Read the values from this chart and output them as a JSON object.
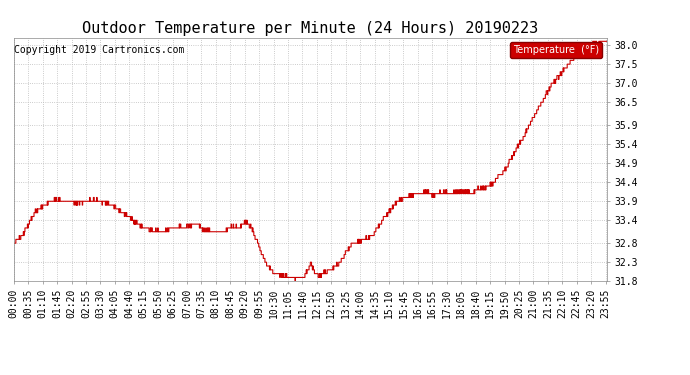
{
  "title": "Outdoor Temperature per Minute (24 Hours) 20190223",
  "copyright_text": "Copyright 2019 Cartronics.com",
  "legend_label": "Temperature  (°F)",
  "background_color": "#ffffff",
  "plot_bg_color": "#ffffff",
  "grid_color": "#bbbbbb",
  "line_color": "#cc0000",
  "legend_bg": "#cc0000",
  "legend_text_color": "#ffffff",
  "ylim_min": 31.8,
  "ylim_max": 38.2,
  "yticks": [
    31.8,
    32.3,
    32.8,
    33.4,
    33.9,
    34.4,
    34.9,
    35.4,
    35.9,
    36.5,
    37.0,
    37.5,
    38.0
  ],
  "title_fontsize": 11,
  "copyright_fontsize": 7,
  "tick_fontsize": 7,
  "xtick_interval": 35,
  "total_minutes": 1440,
  "waypoints_x": [
    0,
    20,
    50,
    85,
    100,
    120,
    150,
    175,
    200,
    210,
    240,
    270,
    300,
    330,
    360,
    390,
    420,
    445,
    460,
    480,
    510,
    530,
    545,
    560,
    570,
    580,
    595,
    610,
    630,
    650,
    670,
    685,
    695,
    705,
    715,
    720,
    730,
    740,
    755,
    770,
    790,
    820,
    840,
    870,
    900,
    930,
    950,
    960,
    980,
    1000,
    1020,
    1040,
    1060,
    1080,
    1100,
    1110,
    1120,
    1140,
    1160,
    1175,
    1190,
    1210,
    1230,
    1250,
    1275,
    1300,
    1330,
    1360,
    1390,
    1410,
    1430,
    1439
  ],
  "waypoints_y": [
    32.8,
    33.0,
    33.6,
    33.9,
    33.95,
    33.9,
    33.85,
    33.9,
    33.95,
    33.9,
    33.8,
    33.55,
    33.3,
    33.15,
    33.1,
    33.2,
    33.25,
    33.3,
    33.15,
    33.1,
    33.1,
    33.25,
    33.2,
    33.35,
    33.3,
    33.1,
    32.7,
    32.3,
    32.0,
    31.95,
    31.9,
    31.88,
    31.9,
    31.95,
    32.15,
    32.25,
    32.0,
    31.95,
    32.05,
    32.1,
    32.3,
    32.8,
    32.85,
    33.0,
    33.5,
    33.9,
    34.0,
    34.05,
    34.1,
    34.15,
    34.05,
    34.15,
    34.1,
    34.15,
    34.15,
    34.1,
    34.2,
    34.25,
    34.35,
    34.55,
    34.7,
    35.1,
    35.5,
    35.9,
    36.4,
    36.9,
    37.3,
    37.7,
    37.95,
    38.05,
    38.1,
    38.1
  ]
}
